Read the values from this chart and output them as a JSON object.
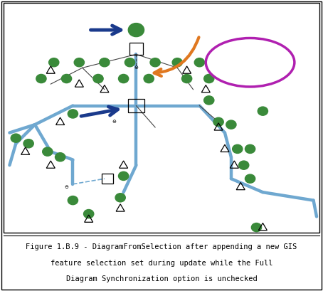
{
  "title_fontsize": 7.5,
  "fig_width": 4.54,
  "fig_height": 4.09,
  "dpi": 100,
  "bg_color": "#ffffff",
  "border_color": "#000000",
  "diagram_bg": "#ffffff",
  "caption_color": "#000000",
  "blue_arrow_color": "#1a3a8c",
  "orange_arrow_color": "#e07820",
  "purple_ellipse_color": "#b020b0",
  "network_line_color": "#6fa8d0",
  "node_circle_edge": "#3a8a3a",
  "node_fill": "#ffffff",
  "thin_line_color": "#444444",
  "caption_lines": [
    "Figure 1.B.9 - DiagramFromSelection after appending a new GIS",
    "feature selection set during update while the Full",
    "Diagram Synchronization option is unchecked"
  ]
}
